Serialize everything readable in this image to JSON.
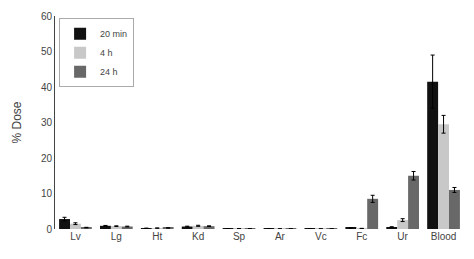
{
  "chart_data": {
    "type": "bar",
    "categories": [
      "Lv",
      "Lg",
      "Ht",
      "Kd",
      "Sp",
      "Ar",
      "Vc",
      "Fc",
      "Ur",
      "Blood"
    ],
    "series": [
      {
        "name": "20 min",
        "color": "#111111",
        "values": [
          2.8,
          0.9,
          0.2,
          0.7,
          0.1,
          0.05,
          0.05,
          0.3,
          0.5,
          41.5
        ],
        "errors": [
          0.5,
          0.1,
          0.05,
          0.1,
          0.03,
          0.02,
          0.02,
          0.08,
          0.15,
          7.5
        ]
      },
      {
        "name": "4 h",
        "color": "#c8c8c8",
        "values": [
          1.5,
          0.8,
          0.25,
          0.9,
          0.1,
          0.05,
          0.05,
          0.15,
          2.5,
          29.5
        ],
        "errors": [
          0.25,
          0.1,
          0.05,
          0.15,
          0.03,
          0.02,
          0.02,
          0.04,
          0.4,
          2.5
        ]
      },
      {
        "name": "24 h",
        "color": "#686868",
        "values": [
          0.4,
          0.7,
          0.3,
          0.8,
          0.1,
          0.05,
          0.05,
          8.5,
          15.0,
          11.0
        ],
        "errors": [
          0.08,
          0.1,
          0.04,
          0.1,
          0.02,
          0.01,
          0.01,
          1.0,
          1.2,
          0.7
        ]
      }
    ],
    "ylabel": "% Dose",
    "ylim": [
      0,
      60
    ],
    "yticks": [
      0,
      10,
      20,
      30,
      40,
      50,
      60
    ],
    "legend": "upper left",
    "grid": false
  }
}
